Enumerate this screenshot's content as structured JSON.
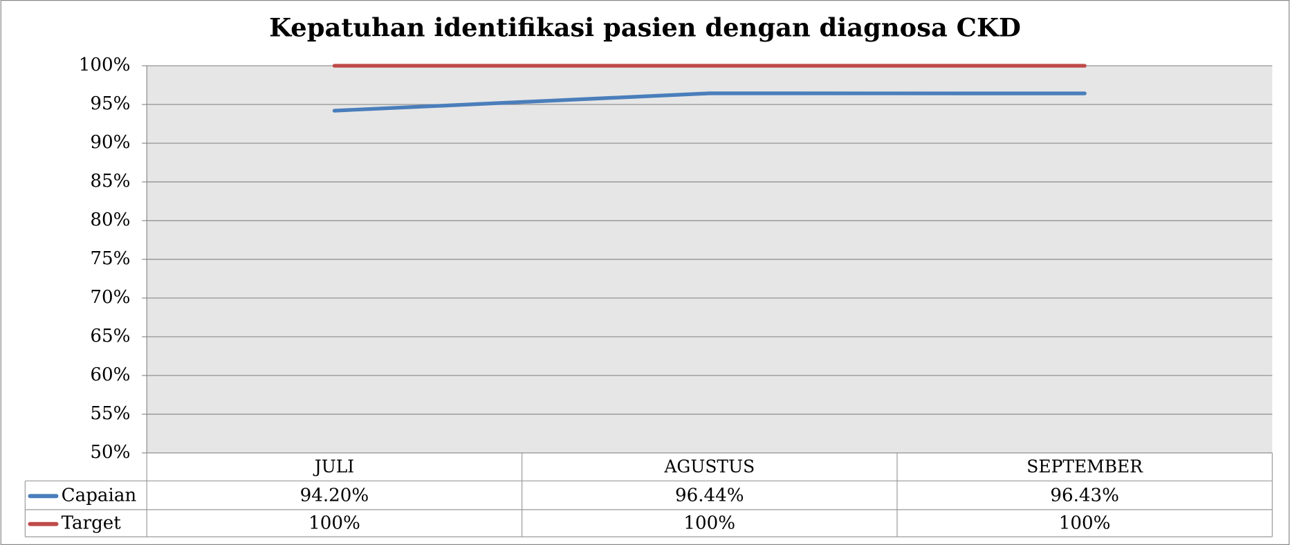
{
  "chart_data": {
    "type": "line",
    "title": "Kepatuhan identifikasi pasien dengan diagnosa CKD",
    "categories": [
      "JULI",
      "AGUSTUS",
      "SEPTEMBER"
    ],
    "series": [
      {
        "name": "Capaian",
        "color": "#4a7ebb",
        "values": [
          94.2,
          96.44,
          96.43
        ],
        "value_labels": [
          "94.20%",
          "96.44%",
          "96.43%"
        ]
      },
      {
        "name": "Target",
        "color": "#be4b48",
        "values": [
          100,
          100,
          100
        ],
        "value_labels": [
          "100%",
          "100%",
          "100%"
        ]
      }
    ],
    "ylim": [
      50,
      100
    ],
    "yticks": [
      {
        "value": 50,
        "label": "50%"
      },
      {
        "value": 55,
        "label": "55%"
      },
      {
        "value": 60,
        "label": "60%"
      },
      {
        "value": 65,
        "label": "65%"
      },
      {
        "value": 70,
        "label": "70%"
      },
      {
        "value": 75,
        "label": "75%"
      },
      {
        "value": 80,
        "label": "80%"
      },
      {
        "value": 85,
        "label": "85%"
      },
      {
        "value": 90,
        "label": "90%"
      },
      {
        "value": 95,
        "label": "95%"
      },
      {
        "value": 100,
        "label": "100%"
      }
    ],
    "grid": true
  }
}
